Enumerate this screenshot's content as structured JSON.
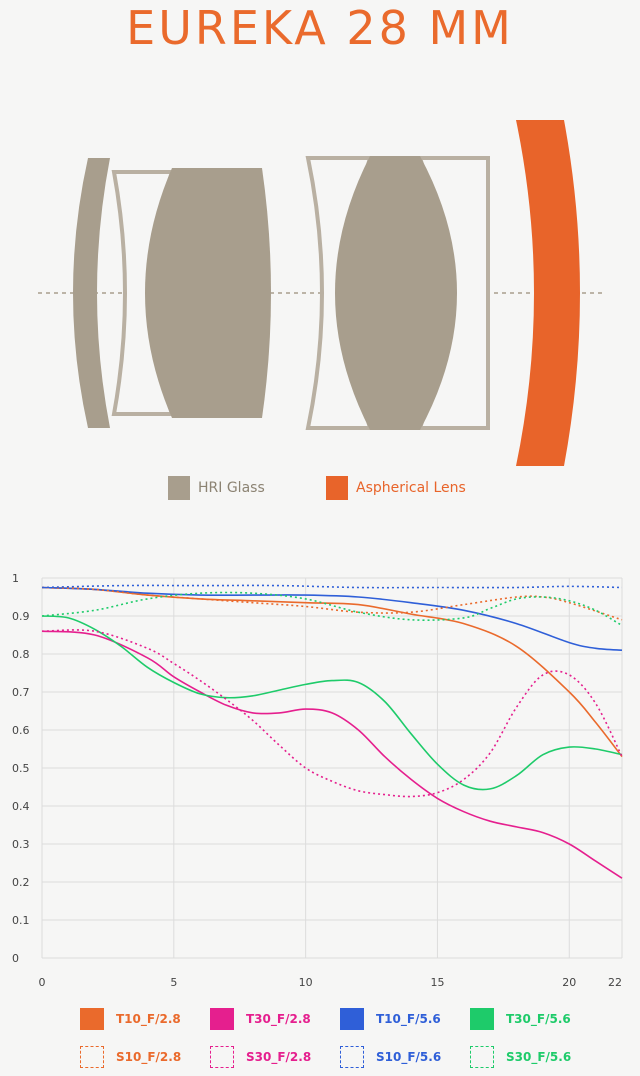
{
  "title": "EUREKA  28 MM",
  "diagram": {
    "legend": [
      {
        "label": "HRI Glass",
        "color": "#a89e8d",
        "label_color": "#8c8373"
      },
      {
        "label": "Aspherical Lens",
        "color": "#e8642a",
        "label_color": "#e8642a"
      }
    ]
  },
  "chart_data": {
    "type": "line",
    "xlim": [
      0,
      22
    ],
    "ylim": [
      0,
      1
    ],
    "x_ticks": [
      "0",
      "5",
      "10",
      "15",
      "20",
      "22"
    ],
    "y_ticks": [
      "0",
      "0.1",
      "0.2",
      "0.3",
      "0.4",
      "0.5",
      "0.6",
      "0.7",
      "0.8",
      "0.9",
      "1"
    ],
    "grid": true,
    "legend_position": "bottom",
    "series": [
      {
        "name": "T10_F/2.8",
        "color": "#ea6a2c",
        "style": "solid",
        "points": [
          [
            0,
            0.975
          ],
          [
            2,
            0.97
          ],
          [
            4,
            0.955
          ],
          [
            6,
            0.945
          ],
          [
            8,
            0.94
          ],
          [
            10,
            0.935
          ],
          [
            12,
            0.93
          ],
          [
            14,
            0.905
          ],
          [
            16,
            0.88
          ],
          [
            18,
            0.82
          ],
          [
            20,
            0.7
          ],
          [
            21,
            0.62
          ],
          [
            22,
            0.53
          ]
        ]
      },
      {
        "name": "T30_F/2.8",
        "color": "#e51f8e",
        "style": "solid",
        "points": [
          [
            0,
            0.86
          ],
          [
            2,
            0.85
          ],
          [
            4,
            0.79
          ],
          [
            5,
            0.74
          ],
          [
            6,
            0.7
          ],
          [
            7,
            0.665
          ],
          [
            8,
            0.645
          ],
          [
            9,
            0.645
          ],
          [
            10,
            0.655
          ],
          [
            11,
            0.645
          ],
          [
            12,
            0.6
          ],
          [
            13,
            0.53
          ],
          [
            14,
            0.47
          ],
          [
            15,
            0.42
          ],
          [
            16,
            0.385
          ],
          [
            17,
            0.36
          ],
          [
            18,
            0.345
          ],
          [
            19,
            0.33
          ],
          [
            20,
            0.3
          ],
          [
            21,
            0.255
          ],
          [
            22,
            0.21
          ]
        ]
      },
      {
        "name": "T10_F/5.6",
        "color": "#2f5fd8",
        "style": "solid",
        "points": [
          [
            0,
            0.975
          ],
          [
            2,
            0.97
          ],
          [
            4,
            0.96
          ],
          [
            6,
            0.955
          ],
          [
            8,
            0.955
          ],
          [
            10,
            0.955
          ],
          [
            12,
            0.95
          ],
          [
            14,
            0.935
          ],
          [
            16,
            0.915
          ],
          [
            18,
            0.88
          ],
          [
            20,
            0.83
          ],
          [
            21,
            0.815
          ],
          [
            22,
            0.81
          ]
        ]
      },
      {
        "name": "T30_F/5.6",
        "color": "#1ecb6a",
        "style": "solid",
        "points": [
          [
            0,
            0.9
          ],
          [
            1,
            0.895
          ],
          [
            2,
            0.865
          ],
          [
            3,
            0.82
          ],
          [
            4,
            0.765
          ],
          [
            5,
            0.725
          ],
          [
            6,
            0.695
          ],
          [
            7,
            0.685
          ],
          [
            8,
            0.69
          ],
          [
            9,
            0.705
          ],
          [
            10,
            0.72
          ],
          [
            11,
            0.73
          ],
          [
            12,
            0.725
          ],
          [
            13,
            0.675
          ],
          [
            14,
            0.59
          ],
          [
            15,
            0.51
          ],
          [
            16,
            0.455
          ],
          [
            17,
            0.445
          ],
          [
            18,
            0.48
          ],
          [
            19,
            0.535
          ],
          [
            20,
            0.555
          ],
          [
            21,
            0.55
          ],
          [
            22,
            0.535
          ]
        ]
      },
      {
        "name": "S10_F/2.8",
        "color": "#ea6a2c",
        "style": "dotted",
        "points": [
          [
            0,
            0.975
          ],
          [
            2,
            0.97
          ],
          [
            4,
            0.955
          ],
          [
            6,
            0.945
          ],
          [
            8,
            0.935
          ],
          [
            10,
            0.925
          ],
          [
            12,
            0.91
          ],
          [
            14,
            0.91
          ],
          [
            16,
            0.93
          ],
          [
            18,
            0.95
          ],
          [
            19,
            0.95
          ],
          [
            20,
            0.935
          ],
          [
            22,
            0.89
          ]
        ]
      },
      {
        "name": "S30_F/2.8",
        "color": "#e51f8e",
        "style": "dotted",
        "points": [
          [
            0,
            0.86
          ],
          [
            2,
            0.86
          ],
          [
            4,
            0.815
          ],
          [
            5,
            0.775
          ],
          [
            6,
            0.73
          ],
          [
            7,
            0.68
          ],
          [
            8,
            0.625
          ],
          [
            9,
            0.56
          ],
          [
            10,
            0.5
          ],
          [
            11,
            0.465
          ],
          [
            12,
            0.44
          ],
          [
            13,
            0.43
          ],
          [
            14,
            0.425
          ],
          [
            15,
            0.435
          ],
          [
            16,
            0.47
          ],
          [
            17,
            0.54
          ],
          [
            18,
            0.66
          ],
          [
            19,
            0.745
          ],
          [
            20,
            0.745
          ],
          [
            21,
            0.67
          ],
          [
            22,
            0.53
          ]
        ]
      },
      {
        "name": "S10_F/5.6",
        "color": "#2f5fd8",
        "style": "dotted",
        "points": [
          [
            0,
            0.975
          ],
          [
            3,
            0.98
          ],
          [
            6,
            0.98
          ],
          [
            9,
            0.98
          ],
          [
            12,
            0.975
          ],
          [
            15,
            0.975
          ],
          [
            18,
            0.975
          ],
          [
            20,
            0.978
          ],
          [
            22,
            0.975
          ]
        ]
      },
      {
        "name": "S30_F/5.6",
        "color": "#1ecb6a",
        "style": "dotted",
        "points": [
          [
            0,
            0.9
          ],
          [
            2,
            0.915
          ],
          [
            4,
            0.945
          ],
          [
            6,
            0.96
          ],
          [
            8,
            0.96
          ],
          [
            10,
            0.945
          ],
          [
            12,
            0.91
          ],
          [
            14,
            0.89
          ],
          [
            16,
            0.895
          ],
          [
            17,
            0.92
          ],
          [
            18,
            0.945
          ],
          [
            19,
            0.95
          ],
          [
            20,
            0.94
          ],
          [
            21,
            0.915
          ],
          [
            22,
            0.875
          ]
        ]
      }
    ]
  },
  "legend_rows": [
    [
      {
        "label": "T10_F/2.8",
        "color": "#ea6a2c",
        "style": "solid"
      },
      {
        "label": "T30_F/2.8",
        "color": "#e51f8e",
        "style": "solid"
      },
      {
        "label": "T10_F/5.6",
        "color": "#2f5fd8",
        "style": "solid"
      },
      {
        "label": "T30_F/5.6",
        "color": "#1ecb6a",
        "style": "solid"
      }
    ],
    [
      {
        "label": "S10_F/2.8",
        "color": "#ea6a2c",
        "style": "dotted"
      },
      {
        "label": "S30_F/2.8",
        "color": "#e51f8e",
        "style": "dotted"
      },
      {
        "label": "S10_F/5.6",
        "color": "#2f5fd8",
        "style": "dotted"
      },
      {
        "label": "S30_F/5.6",
        "color": "#1ecb6a",
        "style": "dotted"
      }
    ]
  ]
}
